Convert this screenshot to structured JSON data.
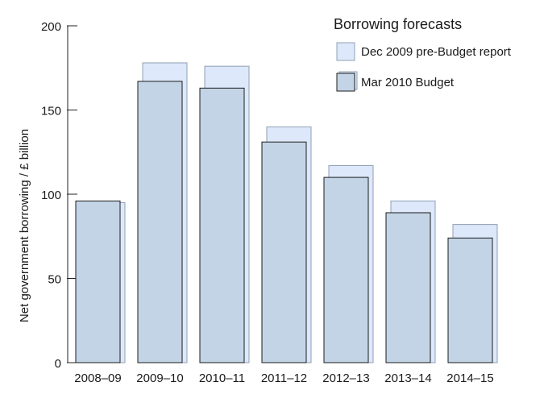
{
  "chart_data": {
    "type": "bar",
    "title": "",
    "xlabel": "",
    "ylabel": "Net government borrowing / £ billion",
    "ylim": [
      0,
      200
    ],
    "yticks": [
      0,
      50,
      100,
      150,
      200
    ],
    "grid": false,
    "categories": [
      "2008–09",
      "2009–10",
      "2010–11",
      "2011–12",
      "2012–13",
      "2013–14",
      "2014–15"
    ],
    "series": [
      {
        "name": "Dec 2009 pre-Budget report",
        "color": "#dde8fa",
        "values": [
          95,
          178,
          176,
          140,
          117,
          96,
          82
        ]
      },
      {
        "name": "Mar 2010 Budget",
        "color": "#c3d4e6",
        "values": [
          96,
          167,
          163,
          131,
          110,
          89,
          74
        ]
      }
    ],
    "legend": {
      "title": "Borrowing forecasts",
      "position": "top-right"
    }
  }
}
